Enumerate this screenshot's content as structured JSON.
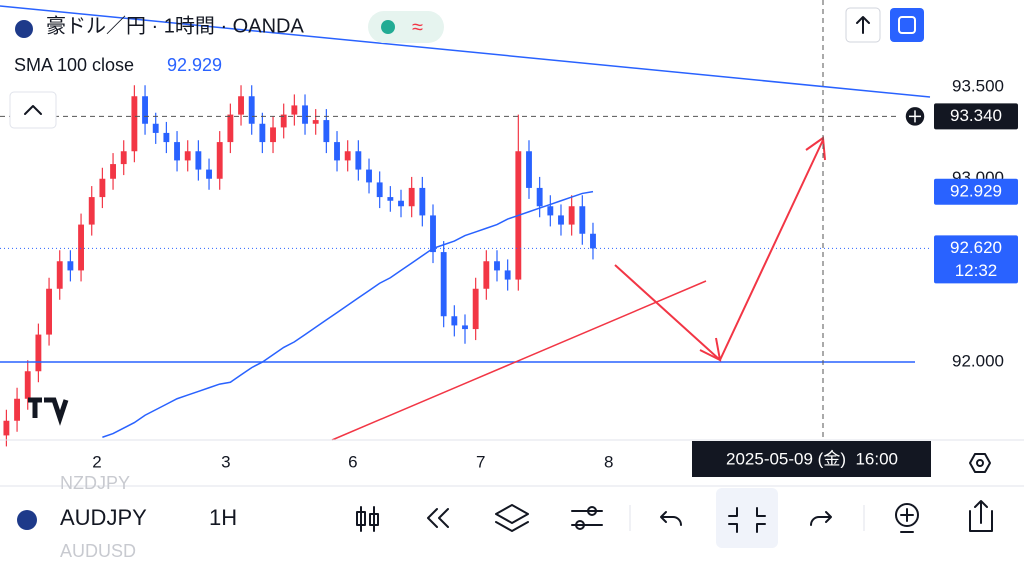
{
  "header": {
    "symbol_title": "豪ドル／円 · 1時間 · OANDA"
  },
  "chart_data": {
    "type": "candlestick",
    "xlim": [
      -0.6,
      86.6
    ],
    "xticks": [
      {
        "value": 8.49,
        "label": "2"
      },
      {
        "value": 20.58,
        "label": "3"
      },
      {
        "value": 32.48,
        "label": "6"
      },
      {
        "value": 44.48,
        "label": "7"
      },
      {
        "value": 56.48,
        "label": "8"
      }
    ],
    "ylim": [
      91.575,
      93.975
    ],
    "yticks": [
      {
        "value": 92,
        "label": "92.000"
      },
      {
        "value": 93,
        "label": "93.000"
      },
      {
        "value": 93.5,
        "label": "93.500"
      }
    ],
    "up_color": "#f23645",
    "down_color": "#2962ff",
    "open": [
      91.6,
      91.68,
      91.8,
      91.95,
      92.15,
      92.4,
      92.55,
      92.5,
      92.75,
      92.9,
      93.0,
      93.08,
      93.15,
      93.45,
      93.3,
      93.25,
      93.2,
      93.1,
      93.15,
      93.05,
      93.0,
      93.2,
      93.35,
      93.45,
      93.3,
      93.2,
      93.28,
      93.35,
      93.4,
      93.3,
      93.32,
      93.2,
      93.1,
      93.15,
      93.05,
      92.98,
      92.9,
      92.88,
      92.85,
      92.95,
      92.8,
      92.6,
      92.25,
      92.2,
      92.18,
      92.4,
      92.55,
      92.5,
      92.45,
      93.15,
      92.95,
      92.85,
      92.8,
      92.75,
      92.85,
      92.7
    ],
    "high": [
      91.74,
      91.86,
      92.01,
      92.21,
      92.46,
      92.61,
      92.61,
      92.81,
      92.96,
      93.06,
      93.14,
      93.21,
      93.51,
      93.51,
      93.36,
      93.31,
      93.26,
      93.21,
      93.21,
      93.11,
      93.26,
      93.41,
      93.51,
      93.51,
      93.36,
      93.34,
      93.41,
      93.46,
      93.46,
      93.38,
      93.38,
      93.26,
      93.21,
      93.21,
      93.11,
      93.04,
      92.96,
      92.94,
      93.01,
      93.01,
      92.86,
      92.66,
      92.31,
      92.26,
      92.46,
      92.61,
      92.61,
      92.56,
      93.35,
      93.21,
      93.01,
      92.91,
      92.86,
      92.91,
      92.91,
      92.76
    ],
    "low": [
      91.54,
      91.62,
      91.74,
      91.89,
      92.09,
      92.34,
      92.44,
      92.44,
      92.69,
      92.84,
      92.94,
      93.02,
      93.09,
      93.24,
      93.19,
      93.14,
      93.04,
      93.04,
      92.99,
      92.94,
      92.94,
      93.14,
      93.29,
      93.24,
      93.14,
      93.14,
      93.22,
      93.29,
      93.24,
      93.24,
      93.14,
      93.04,
      93.04,
      92.99,
      92.92,
      92.84,
      92.82,
      92.79,
      92.79,
      92.74,
      92.54,
      92.19,
      92.14,
      92.1,
      92.12,
      92.34,
      92.44,
      92.39,
      92.39,
      92.89,
      92.79,
      92.74,
      92.69,
      92.69,
      92.64,
      92.56
    ],
    "close": [
      91.68,
      91.8,
      91.95,
      92.15,
      92.4,
      92.55,
      92.5,
      92.75,
      92.9,
      93.0,
      93.08,
      93.15,
      93.45,
      93.3,
      93.25,
      93.2,
      93.1,
      93.15,
      93.05,
      93.0,
      93.2,
      93.35,
      93.45,
      93.3,
      93.2,
      93.28,
      93.35,
      93.4,
      93.3,
      93.32,
      93.2,
      93.1,
      93.15,
      93.05,
      92.98,
      92.9,
      92.88,
      92.85,
      92.95,
      92.8,
      92.6,
      92.25,
      92.2,
      92.18,
      92.4,
      92.55,
      92.5,
      92.45,
      93.15,
      92.95,
      92.85,
      92.8,
      92.75,
      92.85,
      92.7,
      92.62
    ],
    "series": [
      {
        "name": "SMA 100 close",
        "color": "#2962ff",
        "values": [
          null,
          null,
          null,
          null,
          null,
          null,
          null,
          null,
          null,
          91.59,
          91.61,
          91.64,
          91.67,
          91.71,
          91.74,
          91.77,
          91.8,
          91.82,
          91.84,
          91.86,
          91.88,
          91.89,
          91.93,
          91.97,
          92.0,
          92.04,
          92.08,
          92.11,
          92.15,
          92.19,
          92.23,
          92.27,
          92.31,
          92.35,
          92.39,
          92.43,
          92.46,
          92.5,
          92.54,
          92.58,
          92.62,
          92.64,
          92.66,
          92.69,
          92.71,
          92.73,
          92.75,
          92.78,
          92.8,
          92.82,
          92.84,
          92.86,
          92.88,
          92.9,
          92.92,
          92.93
        ]
      }
    ],
    "price_labels": [
      {
        "value": 93.34,
        "label": "93.340"
      },
      {
        "value": 92.929,
        "label": "92.929"
      },
      {
        "value": 92.62,
        "label": "92.620"
      }
    ],
    "countdown": "12:32",
    "crosshair_time": "2025-05-09 (金)  16:00"
  },
  "toolbar": {
    "prev_symbol": "NZDJPY",
    "symbol": "AUDJPY",
    "interval": "1H",
    "next_symbol": "AUDUSD"
  }
}
